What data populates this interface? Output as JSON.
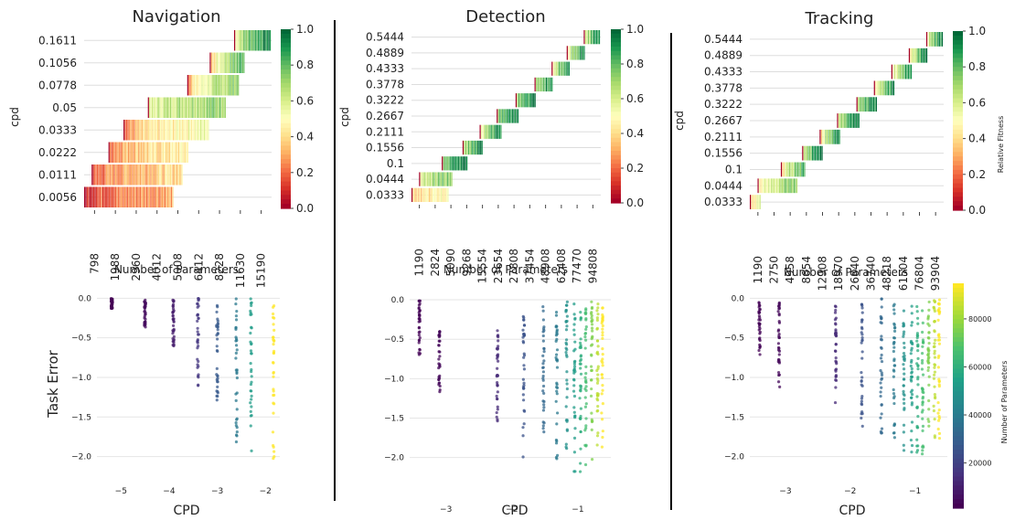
{
  "colors": {
    "heatmap_scale": [
      "#a50026",
      "#d73027",
      "#f46d43",
      "#fdae61",
      "#fee08b",
      "#ffffbf",
      "#d9ef8b",
      "#a6d96a",
      "#66bd63",
      "#1a9850",
      "#006837"
    ],
    "scatter_scale": [
      "#440154",
      "#46327e",
      "#365c8d",
      "#277f8e",
      "#1fa187",
      "#4ac16d",
      "#a0da39",
      "#fde725"
    ],
    "divider": "#000000",
    "grid": "#dddddd",
    "text": "#222222"
  },
  "chart_data": [
    {
      "type": "heatmap",
      "title": "Navigation",
      "xlabel": "Number of Parameters",
      "ylabel": "cpd",
      "x_tick_labels": [
        "798",
        "1988",
        "2960",
        "4012",
        "5008",
        "6412",
        "8228",
        "11630",
        "15190"
      ],
      "y_tick_labels": [
        "0.1611",
        "0.1056",
        "0.0778",
        "0.05",
        "0.0333",
        "0.0222",
        "0.0111",
        "0.0056"
      ],
      "colorbar": {
        "range": [
          0.0,
          1.0
        ],
        "ticks": [
          "0.0",
          "0.2",
          "0.4",
          "0.6",
          "0.8",
          "1.0"
        ],
        "label": ""
      },
      "rows": [
        {
          "cpd": "0.1611",
          "start": 0.8,
          "end": 0.99,
          "fit_start": 0.35,
          "fit_end": 0.95
        },
        {
          "cpd": "0.1056",
          "start": 0.67,
          "end": 0.85,
          "fit_start": 0.05,
          "fit_end": 0.85
        },
        {
          "cpd": "0.0778",
          "start": 0.55,
          "end": 0.82,
          "fit_start": 0.1,
          "fit_end": 0.75
        },
        {
          "cpd": "0.05",
          "start": 0.34,
          "end": 0.75,
          "fit_start": 0.45,
          "fit_end": 0.75
        },
        {
          "cpd": "0.0333",
          "start": 0.21,
          "end": 0.66,
          "fit_start": 0.05,
          "fit_end": 0.55
        },
        {
          "cpd": "0.0222",
          "start": 0.13,
          "end": 0.55,
          "fit_start": 0.15,
          "fit_end": 0.45
        },
        {
          "cpd": "0.0111",
          "start": 0.04,
          "end": 0.52,
          "fit_start": 0.05,
          "fit_end": 0.4
        },
        {
          "cpd": "0.0056",
          "start": 0.0,
          "end": 0.47,
          "fit_start": 0.0,
          "fit_end": 0.3
        }
      ]
    },
    {
      "type": "heatmap",
      "title": "Detection",
      "xlabel": "Number of Parameters",
      "ylabel": "cpd",
      "x_tick_labels": [
        "1190",
        "2824",
        "5090",
        "9268",
        "15554",
        "23654",
        "27808",
        "37454",
        "48908",
        "62408",
        "77470",
        "94808"
      ],
      "y_tick_labels": [
        "0.5444",
        "0.4889",
        "0.4333",
        "0.3778",
        "0.3222",
        "0.2667",
        "0.2111",
        "0.1556",
        "0.1",
        "0.0444",
        "0.0333"
      ],
      "colorbar": {
        "range": [
          0.0,
          1.0
        ],
        "ticks": [
          "0.0",
          "0.2",
          "0.4",
          "0.6",
          "0.8",
          "1.0"
        ],
        "label": ""
      },
      "rows": [
        {
          "cpd": "0.5444",
          "start": 0.91,
          "end": 0.99,
          "fit_start": 0.2,
          "fit_end": 0.95
        },
        {
          "cpd": "0.4889",
          "start": 0.82,
          "end": 0.91,
          "fit_start": 0.2,
          "fit_end": 0.95
        },
        {
          "cpd": "0.4333",
          "start": 0.74,
          "end": 0.83,
          "fit_start": 0.25,
          "fit_end": 0.95
        },
        {
          "cpd": "0.3778",
          "start": 0.65,
          "end": 0.74,
          "fit_start": 0.4,
          "fit_end": 0.95
        },
        {
          "cpd": "0.3222",
          "start": 0.55,
          "end": 0.65,
          "fit_start": 0.6,
          "fit_end": 0.95
        },
        {
          "cpd": "0.2667",
          "start": 0.45,
          "end": 0.56,
          "fit_start": 0.6,
          "fit_end": 0.95
        },
        {
          "cpd": "0.2111",
          "start": 0.36,
          "end": 0.47,
          "fit_start": 0.25,
          "fit_end": 0.95
        },
        {
          "cpd": "0.1556",
          "start": 0.27,
          "end": 0.37,
          "fit_start": 0.35,
          "fit_end": 0.95
        },
        {
          "cpd": "0.1",
          "start": 0.16,
          "end": 0.29,
          "fit_start": 0.55,
          "fit_end": 0.95
        },
        {
          "cpd": "0.0444",
          "start": 0.04,
          "end": 0.21,
          "fit_start": 0.45,
          "fit_end": 0.75
        },
        {
          "cpd": "0.0333",
          "start": 0.0,
          "end": 0.19,
          "fit_start": 0.25,
          "fit_end": 0.5
        }
      ]
    },
    {
      "type": "heatmap",
      "title": "Tracking",
      "xlabel": "Number of Parameters",
      "ylabel": "cpd",
      "x_tick_labels": [
        "1190",
        "2750",
        "4958",
        "8654",
        "12908",
        "18970",
        "26840",
        "36740",
        "48218",
        "61504",
        "76804",
        "93904"
      ],
      "y_tick_labels": [
        "0.5444",
        "0.4889",
        "0.4333",
        "0.3778",
        "0.3222",
        "0.2667",
        "0.2111",
        "0.1556",
        "0.1",
        "0.0444",
        "0.0333"
      ],
      "colorbar": {
        "range": [
          0.0,
          1.0
        ],
        "ticks": [
          "0.0",
          "0.2",
          "0.4",
          "0.6",
          "0.8",
          "1.0"
        ],
        "label": "Relative Fitness"
      },
      "rows": [
        {
          "cpd": "0.5444",
          "start": 0.91,
          "end": 0.99,
          "fit_start": 0.2,
          "fit_end": 0.95
        },
        {
          "cpd": "0.4889",
          "start": 0.82,
          "end": 0.91,
          "fit_start": 0.05,
          "fit_end": 0.95
        },
        {
          "cpd": "0.4333",
          "start": 0.73,
          "end": 0.83,
          "fit_start": 0.15,
          "fit_end": 0.95
        },
        {
          "cpd": "0.3778",
          "start": 0.64,
          "end": 0.74,
          "fit_start": 0.1,
          "fit_end": 0.95
        },
        {
          "cpd": "0.3222",
          "start": 0.55,
          "end": 0.65,
          "fit_start": 0.55,
          "fit_end": 0.95
        },
        {
          "cpd": "0.2667",
          "start": 0.45,
          "end": 0.56,
          "fit_start": 0.3,
          "fit_end": 0.95
        },
        {
          "cpd": "0.2111",
          "start": 0.36,
          "end": 0.46,
          "fit_start": 0.1,
          "fit_end": 0.95
        },
        {
          "cpd": "0.1556",
          "start": 0.27,
          "end": 0.37,
          "fit_start": 0.35,
          "fit_end": 0.95
        },
        {
          "cpd": "0.1",
          "start": 0.16,
          "end": 0.28,
          "fit_start": 0.15,
          "fit_end": 0.85
        },
        {
          "cpd": "0.0444",
          "start": 0.04,
          "end": 0.24,
          "fit_start": 0.3,
          "fit_end": 0.75
        },
        {
          "cpd": "0.0333",
          "start": 0.0,
          "end": 0.05,
          "fit_start": 0.25,
          "fit_end": 0.55
        }
      ]
    },
    {
      "type": "scatter",
      "title": "",
      "xlabel": "CPD",
      "ylabel": "Task Error",
      "xlim": [
        -5.5,
        -1.7
      ],
      "ylim": [
        -2.12,
        0.05
      ],
      "x_ticks": [
        -5,
        -4,
        -3,
        -2
      ],
      "x_tick_labels": [
        "−5",
        "−4",
        "−3",
        "−2"
      ],
      "y_ticks": [
        0.0,
        -0.5,
        -1.0,
        -1.5,
        -2.0
      ],
      "y_tick_labels": [
        "0.0",
        "−0.5",
        "−1.0",
        "−1.5",
        "−2.0"
      ],
      "columns": [
        {
          "x": -5.19,
          "ymin": -0.15,
          "ymax": 0.0,
          "color": 0.0
        },
        {
          "x": -4.5,
          "ymin": -0.4,
          "ymax": -0.02,
          "color": 0.03
        },
        {
          "x": -3.91,
          "ymin": -0.65,
          "ymax": -0.02,
          "color": 0.08
        },
        {
          "x": -3.4,
          "ymin": -1.17,
          "ymax": 0.0,
          "color": 0.16
        },
        {
          "x": -3.0,
          "ymin": -1.48,
          "ymax": -0.05,
          "color": 0.28
        },
        {
          "x": -2.6,
          "ymin": -1.85,
          "ymax": 0.0,
          "color": 0.4
        },
        {
          "x": -2.3,
          "ymin": -2.08,
          "ymax": 0.0,
          "color": 0.55
        },
        {
          "x": -1.83,
          "ymin": -2.05,
          "ymax": -0.08,
          "color": 1.0
        }
      ]
    },
    {
      "type": "scatter",
      "title": "",
      "xlabel": "CPD",
      "ylabel": "",
      "xlim": [
        -3.55,
        -0.5
      ],
      "ylim": [
        -2.34,
        0.07
      ],
      "x_ticks": [
        -3,
        -2,
        -1
      ],
      "x_tick_labels": [
        "−3",
        "−2",
        "−1"
      ],
      "y_ticks": [
        0.0,
        -0.5,
        -1.0,
        -1.5,
        -2.0
      ],
      "y_tick_labels": [
        "0.0",
        "−0.5",
        "−1.0",
        "−1.5",
        "−2.0"
      ],
      "columns": [
        {
          "x": -3.4,
          "ymin": -0.7,
          "ymax": 0.0,
          "color": 0.01
        },
        {
          "x": -3.1,
          "ymin": -1.2,
          "ymax": -0.4,
          "color": 0.02
        },
        {
          "x": -2.22,
          "ymin": -1.66,
          "ymax": -0.36,
          "color": 0.12
        },
        {
          "x": -1.82,
          "ymin": -2.03,
          "ymax": -0.2,
          "color": 0.25
        },
        {
          "x": -1.52,
          "ymin": -2.13,
          "ymax": -0.05,
          "color": 0.33
        },
        {
          "x": -1.32,
          "ymin": -2.05,
          "ymax": -0.1,
          "color": 0.4
        },
        {
          "x": -1.17,
          "ymin": -2.14,
          "ymax": 0.0,
          "color": 0.5
        },
        {
          "x": -1.05,
          "ymin": -2.26,
          "ymax": -0.05,
          "color": 0.55
        },
        {
          "x": -0.96,
          "ymin": -2.22,
          "ymax": -0.03,
          "color": 0.62
        },
        {
          "x": -0.88,
          "ymin": -2.3,
          "ymax": 0.0,
          "color": 0.7
        },
        {
          "x": -0.79,
          "ymin": -2.06,
          "ymax": -0.02,
          "color": 0.8
        },
        {
          "x": -0.7,
          "ymin": -1.98,
          "ymax": 0.0,
          "color": 0.9
        },
        {
          "x": -0.63,
          "ymin": -1.93,
          "ymax": -0.02,
          "color": 1.0
        }
      ]
    },
    {
      "type": "scatter",
      "title": "",
      "xlabel": "CPD",
      "ylabel": "",
      "xlim": [
        -3.55,
        -0.5
      ],
      "ylim": [
        -2.12,
        0.05
      ],
      "x_ticks": [
        -3,
        -2,
        -1
      ],
      "x_tick_labels": [
        "−3",
        "−2",
        "−1"
      ],
      "y_ticks": [
        0.0,
        -0.5,
        -1.0,
        -1.5,
        -2.0
      ],
      "y_tick_labels": [
        "0.0",
        "−0.5",
        "−1.0",
        "−1.5",
        "−2.0"
      ],
      "colorbar": {
        "range": [
          1190,
          94808
        ],
        "ticks": [
          20000,
          40000,
          60000,
          80000
        ],
        "tick_labels": [
          "20000",
          "40000",
          "60000",
          "80000"
        ],
        "label": "Number of Parameters"
      },
      "columns": [
        {
          "x": -3.4,
          "ymin": -0.8,
          "ymax": -0.05,
          "color": 0.01
        },
        {
          "x": -3.1,
          "ymin": -1.17,
          "ymax": 0.0,
          "color": 0.02
        },
        {
          "x": -2.22,
          "ymin": -1.38,
          "ymax": -0.05,
          "color": 0.12
        },
        {
          "x": -1.82,
          "ymin": -1.8,
          "ymax": -0.05,
          "color": 0.25
        },
        {
          "x": -1.52,
          "ymin": -1.78,
          "ymax": 0.0,
          "color": 0.33
        },
        {
          "x": -1.32,
          "ymin": -1.8,
          "ymax": -0.05,
          "color": 0.4
        },
        {
          "x": -1.17,
          "ymin": -1.97,
          "ymax": 0.0,
          "color": 0.5
        },
        {
          "x": -1.05,
          "ymin": -2.08,
          "ymax": -0.05,
          "color": 0.55
        },
        {
          "x": -0.96,
          "ymin": -2.05,
          "ymax": -0.03,
          "color": 0.62
        },
        {
          "x": -0.88,
          "ymin": -2.0,
          "ymax": 0.0,
          "color": 0.7
        },
        {
          "x": -0.79,
          "ymin": -1.97,
          "ymax": -0.02,
          "color": 0.8
        },
        {
          "x": -0.7,
          "ymin": -1.9,
          "ymax": 0.0,
          "color": 0.9
        },
        {
          "x": -0.63,
          "ymin": -1.85,
          "ymax": -0.02,
          "color": 1.0
        }
      ]
    }
  ]
}
